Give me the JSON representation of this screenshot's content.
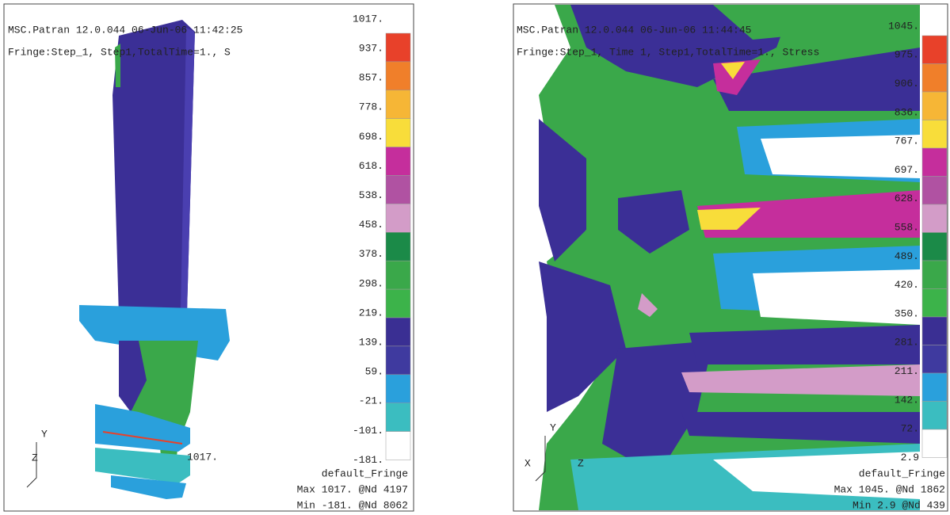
{
  "panels": [
    {
      "header": [
        "MSC.Patran 12.0.044 06-Jun-06 11:42:25",
        "Fringe:Step_1, Step1,TotalTime=1., S"
      ],
      "legend": [
        "1017.",
        "937.",
        "857.",
        "778.",
        "698.",
        "618.",
        "538.",
        "458.",
        "378.",
        "298.",
        "219.",
        "139.",
        "59.",
        "-21.",
        "-101.",
        "-181."
      ],
      "annotation": "1017.",
      "axes": [
        "Y",
        "Z"
      ],
      "footer": [
        "default_Fringe",
        "Max 1017. @Nd 4197",
        "Min -181. @Nd 8062"
      ]
    },
    {
      "header": [
        "MSC.Patran 12.0.044 06-Jun-06 11:44:45",
        "Fringe:Step_1, Time 1, Step1,TotalTime=1., Stress"
      ],
      "legend": [
        "1045.",
        "975.",
        "906.",
        "836.",
        "767.",
        "697.",
        "628.",
        "558.",
        "489.",
        "420.",
        "350.",
        "281.",
        "211.",
        "142.",
        "72.",
        "2.9"
      ],
      "axes": [
        "Y",
        "X",
        "Z"
      ],
      "footer": [
        "default_Fringe",
        "Max 1045. @Nd 1862",
        "Min 2.9 @Nd 439"
      ]
    }
  ]
}
